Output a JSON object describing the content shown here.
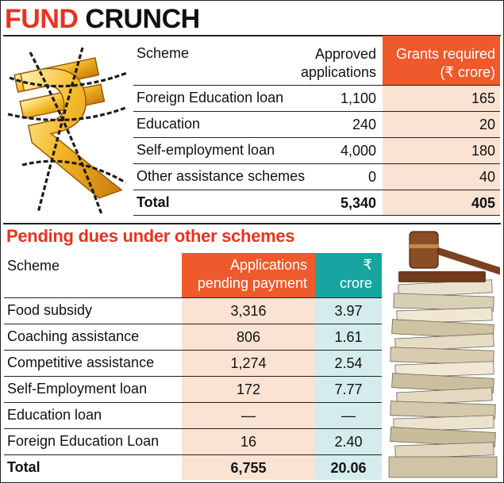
{
  "title": {
    "word1": "FUND",
    "word2": "CRUNCH"
  },
  "subtitle": "Pending dues under other schemes",
  "chart_data": [
    {
      "type": "table",
      "columns": [
        "Scheme",
        "Approved applications",
        "Grants required (₹ crore)"
      ],
      "header": {
        "scheme": "Scheme",
        "approved_line1": "Approved",
        "approved_line2": "applications",
        "grants_line1": "Grants required",
        "grants_line2": "(₹ crore)"
      },
      "rows": [
        {
          "scheme": "Foreign Education loan",
          "approved": "1,100",
          "grants": "165"
        },
        {
          "scheme": "Education",
          "approved": "240",
          "grants": "20"
        },
        {
          "scheme": "Self-employment loan",
          "approved": "4,000",
          "grants": "180"
        },
        {
          "scheme": "Other assistance schemes",
          "approved": "0",
          "grants": "40"
        }
      ],
      "total": {
        "scheme": "Total",
        "approved": "5,340",
        "grants": "405"
      }
    },
    {
      "type": "table",
      "title": "Pending dues under other schemes",
      "columns": [
        "Scheme",
        "Applications pending payment",
        "₹ crore"
      ],
      "header": {
        "scheme": "Scheme",
        "pending_line1": "Applications",
        "pending_line2": "pending payment",
        "crore_line1": "₹",
        "crore_line2": "crore"
      },
      "rows": [
        {
          "scheme": "Food subsidy",
          "pending": "3,316",
          "crore": "3.97"
        },
        {
          "scheme": "Coaching assistance",
          "pending": "806",
          "crore": "1.61"
        },
        {
          "scheme": "Competitive assistance",
          "pending": "1,274",
          "crore": "2.54"
        },
        {
          "scheme": "Self-Employment loan",
          "pending": "172",
          "crore": "7.77"
        },
        {
          "scheme": "Education loan",
          "pending": "—",
          "crore": "—"
        },
        {
          "scheme": "Foreign Education Loan",
          "pending": "16",
          "crore": "2.40"
        }
      ],
      "total": {
        "scheme": "Total",
        "pending": "6,755",
        "crore": "20.06"
      }
    }
  ],
  "icons": {
    "rupee": "chained-rupee-icon",
    "files": "file-stack-gavel-icon"
  },
  "colors": {
    "title_red": "#e8331f",
    "header_orange": "#ee5a2c",
    "cell_peach": "#fbe3d3",
    "header_teal": "#16a5a0",
    "cell_teal": "#d4ecec"
  }
}
